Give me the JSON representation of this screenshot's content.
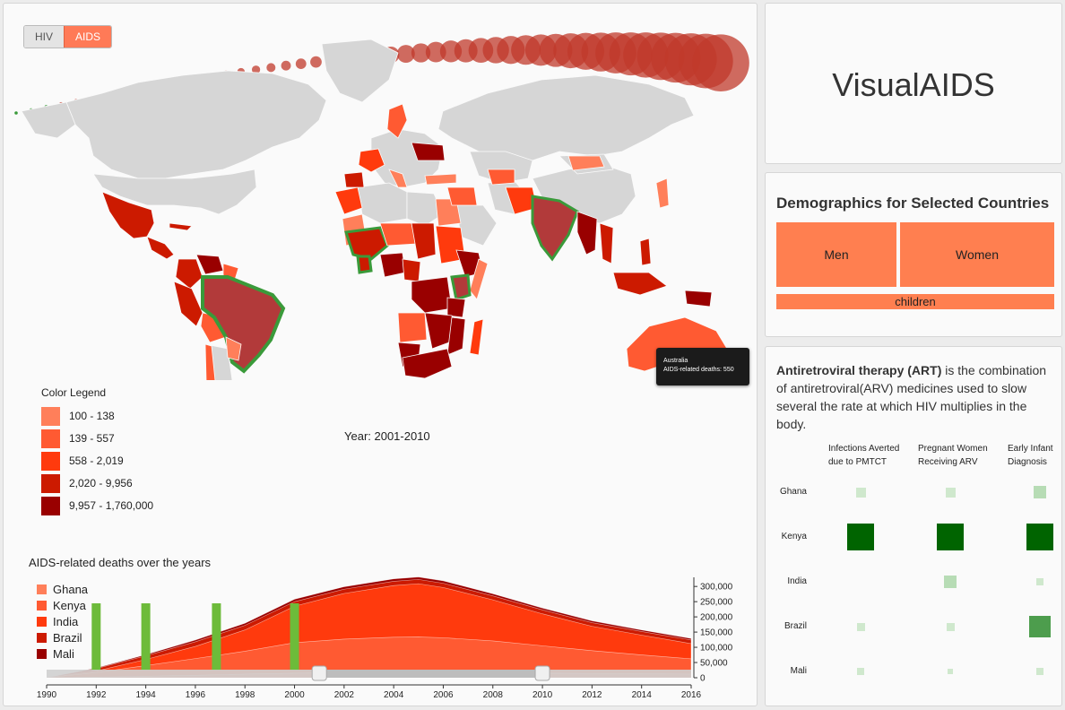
{
  "toggle": {
    "hiv_label": "HIV",
    "aids_label": "AIDS"
  },
  "app_title": "VisualAIDS",
  "demographics": {
    "title": "Demographics for Selected Countries",
    "men_label": "Men",
    "women_label": "Women",
    "children_label": "children"
  },
  "map": {
    "legend_title": "Color Legend",
    "legend": [
      {
        "label": "100 - 138",
        "color": "#ff7f5a"
      },
      {
        "label": "139 - 557",
        "color": "#ff5a32"
      },
      {
        "label": "558 - 2,019",
        "color": "#ff3a0d"
      },
      {
        "label": "2,020 - 9,956",
        "color": "#cc1a00"
      },
      {
        "label": "9,957 - 1,760,000",
        "color": "#990000"
      }
    ],
    "year_label": "Year: 2001-2010",
    "tooltip": {
      "country": "Australia",
      "text": "AIDS-related deaths: 550"
    }
  },
  "stream": {
    "title": "AIDS-related deaths over the years",
    "series": [
      {
        "name": "Ghana",
        "color": "#ff7f5a"
      },
      {
        "name": "Kenya",
        "color": "#ff5a32"
      },
      {
        "name": "India",
        "color": "#ff3a0d"
      },
      {
        "name": "Brazil",
        "color": "#cc1a00"
      },
      {
        "name": "Mali",
        "color": "#990000"
      }
    ],
    "x_ticks": [
      "1990",
      "1992",
      "1994",
      "1996",
      "1998",
      "2000",
      "2002",
      "2004",
      "2006",
      "2008",
      "2010",
      "2012",
      "2014",
      "2016"
    ],
    "y_ticks": [
      "0",
      "50,000",
      "100,000",
      "150,000",
      "200,000",
      "250,000",
      "300,000"
    ]
  },
  "chart_data": {
    "type": "area",
    "title": "AIDS-related deaths over the years",
    "x": [
      1990,
      1992,
      1994,
      1996,
      1998,
      2000,
      2002,
      2004,
      2005,
      2006,
      2008,
      2010,
      2012,
      2014,
      2016
    ],
    "ylim": [
      0,
      330000
    ],
    "series": [
      {
        "name": "Ghana",
        "values": [
          0,
          2000,
          5000,
          8000,
          12000,
          15000,
          17000,
          18000,
          18000,
          17500,
          16000,
          15000,
          14000,
          13000,
          12000
        ]
      },
      {
        "name": "Kenya",
        "values": [
          0,
          15000,
          35000,
          55000,
          75000,
          100000,
          110000,
          115000,
          116000,
          114000,
          105000,
          90000,
          75000,
          62000,
          50000
        ]
      },
      {
        "name": "India",
        "values": [
          0,
          5000,
          20000,
          40000,
          70000,
          120000,
          150000,
          170000,
          175000,
          165000,
          135000,
          105000,
          80000,
          65000,
          50000
        ]
      },
      {
        "name": "Brazil",
        "values": [
          0,
          8000,
          12000,
          15000,
          15000,
          15000,
          14000,
          14000,
          14000,
          14000,
          13000,
          13000,
          12000,
          12000,
          12000
        ]
      },
      {
        "name": "Mali",
        "values": [
          0,
          2000,
          4000,
          6000,
          7000,
          8000,
          8000,
          8000,
          8000,
          8000,
          7000,
          6000,
          6000,
          5000,
          5000
        ]
      }
    ]
  },
  "art": {
    "bold_term": "Antiretroviral therapy (ART)",
    "description": " is the combination of antiretroviral(ARV) medicines used to slow several the rate at which HIV multiplies in the body.",
    "columns": [
      {
        "l1": "Infections Averted",
        "l2": "due to PMTCT"
      },
      {
        "l1": "Pregnant Women",
        "l2": "Receiving ARV"
      },
      {
        "l1": "Early Infant",
        "l2": "Diagnosis"
      }
    ],
    "rows": [
      {
        "country": "Ghana",
        "cells": [
          0.35,
          0.35,
          0.45
        ]
      },
      {
        "country": "Kenya",
        "cells": [
          1.0,
          1.0,
          1.0
        ]
      },
      {
        "country": "India",
        "cells": [
          0,
          0.45,
          0.25
        ]
      },
      {
        "country": "Brazil",
        "cells": [
          0.3,
          0.3,
          0.8
        ]
      },
      {
        "country": "Mali",
        "cells": [
          0.28,
          0.2,
          0.28
        ]
      }
    ]
  }
}
